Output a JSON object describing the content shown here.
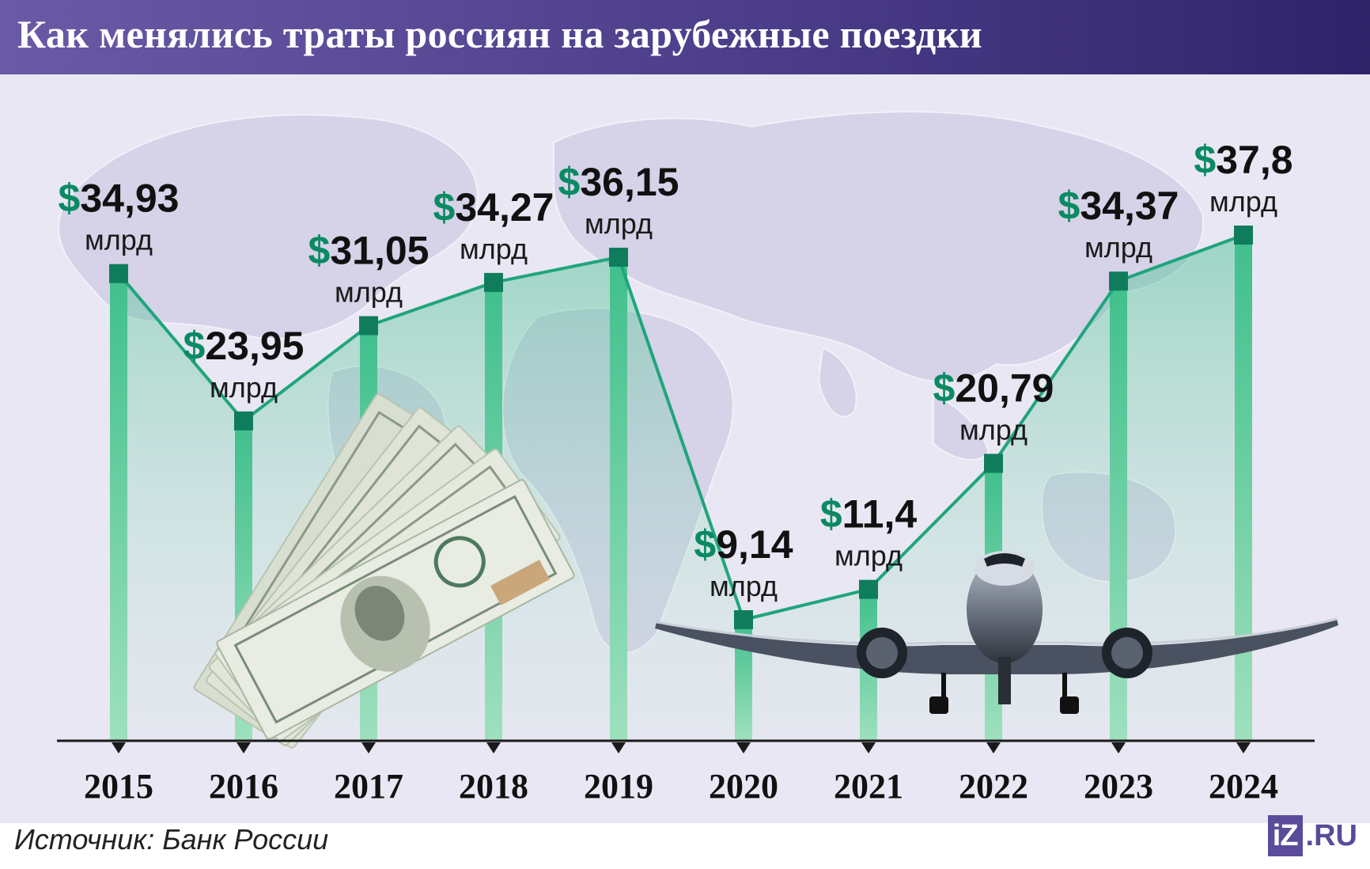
{
  "header": {
    "title": "Как менялись траты россиян на зарубежные поездки"
  },
  "source": "Источник: Банк России",
  "logo": {
    "left": "iZ",
    "right": ".RU"
  },
  "colors": {
    "header": "#4c3d8a",
    "background": "#e9e7f3",
    "bar": "#5bc898",
    "line": "#1fa57c",
    "dollar": "#0a8a63",
    "value_text": "#111111",
    "map": "#d6d2e8"
  },
  "chart_data": {
    "type": "line",
    "title": "Как менялись траты россиян на зарубежные поездки",
    "x": [
      "2015",
      "2016",
      "2017",
      "2018",
      "2019",
      "2020",
      "2021",
      "2022",
      "2023",
      "2024"
    ],
    "series": [
      {
        "values": [
          34.93,
          23.95,
          31.05,
          34.27,
          36.15,
          9.14,
          11.4,
          20.79,
          34.37,
          37.8
        ]
      }
    ],
    "value_labels": [
      "34,93",
      "23,95",
      "31,05",
      "34,27",
      "36,15",
      "9,14",
      "11,4",
      "20,79",
      "34,37",
      "37,8"
    ],
    "value_prefix": "$",
    "unit_label": "млрд",
    "ylim": [
      0,
      40
    ],
    "grid": false,
    "legend": "none",
    "decorations": [
      "world-map",
      "dollar-banknotes",
      "airplane"
    ]
  }
}
